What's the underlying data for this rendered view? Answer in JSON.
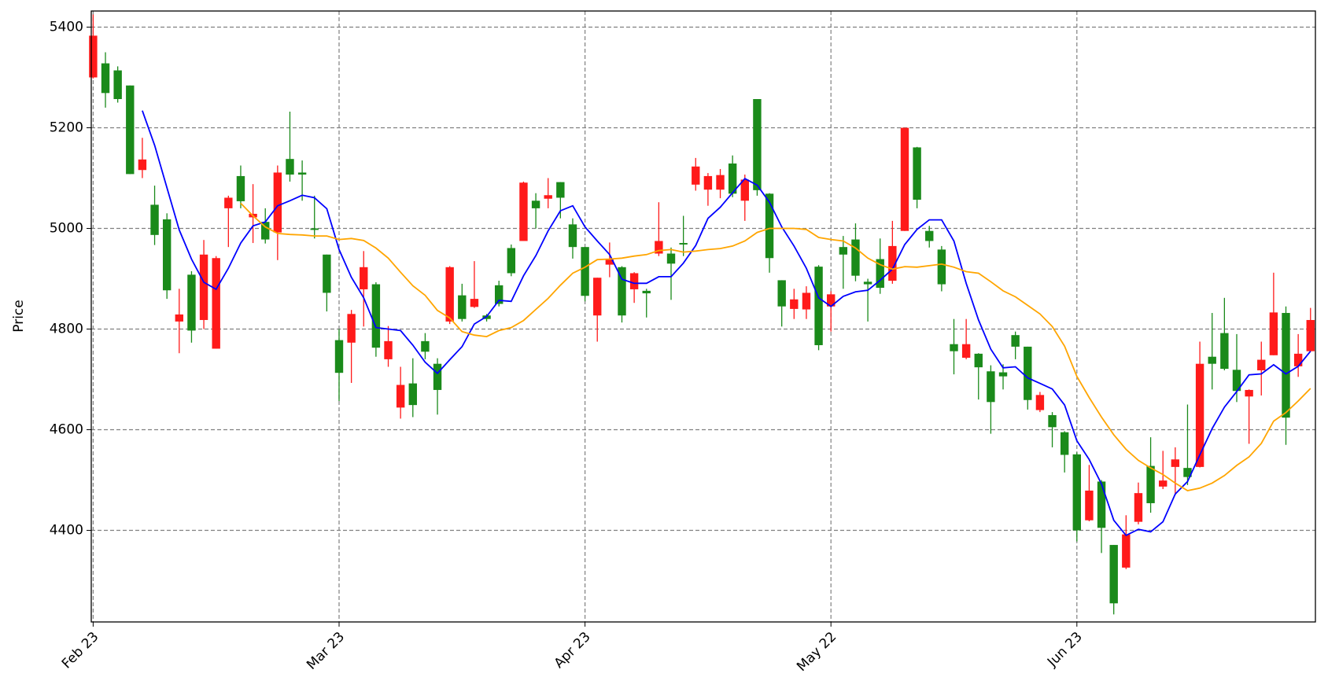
{
  "chart_data": {
    "type": "candlestick",
    "y_label": "Price",
    "categories": [
      "Feb 23",
      null,
      null,
      null,
      null,
      null,
      null,
      null,
      null,
      null,
      null,
      null,
      null,
      null,
      null,
      null,
      null,
      null,
      null,
      null,
      "Mar 23",
      null,
      null,
      null,
      null,
      null,
      null,
      null,
      null,
      null,
      null,
      null,
      null,
      null,
      null,
      null,
      null,
      null,
      null,
      null,
      "Apr 23",
      null,
      null,
      null,
      null,
      null,
      null,
      null,
      null,
      null,
      null,
      null,
      null,
      null,
      null,
      null,
      null,
      null,
      null,
      null,
      "May 22",
      null,
      null,
      null,
      null,
      null,
      null,
      null,
      null,
      null,
      null,
      null,
      null,
      null,
      null,
      null,
      null,
      null,
      null,
      null,
      "Jun 23",
      null,
      null,
      null,
      null,
      null,
      null,
      null,
      null,
      null,
      null,
      null,
      null,
      null,
      null,
      null,
      null,
      null,
      null,
      null
    ],
    "open": [
      5300,
      5328,
      5314,
      5284,
      5116,
      5047,
      5018,
      4815,
      4908,
      4818,
      4761,
      5040,
      5104,
      5022,
      5013,
      4992,
      5138,
      5111,
      5000,
      4948,
      4778,
      4773,
      4879,
      4889,
      4740,
      4644,
      4692,
      4776,
      4731,
      4815,
      4867,
      4844,
      4827,
      4887,
      4961,
      4975,
      5055,
      5059,
      5092,
      5008,
      4963,
      4827,
      4928,
      4923,
      4879,
      4876,
      4950,
      4950,
      4971,
      5087,
      5077,
      5077,
      5129,
      5055,
      5257,
      5069,
      4897,
      4840,
      4839,
      4924,
      4845,
      4963,
      4978,
      4894,
      4939,
      4896,
      4995,
      5161,
      4995,
      4958,
      4770,
      4743,
      4751,
      4716,
      4714,
      4788,
      4765,
      4639,
      4629,
      4595,
      4551,
      4420,
      4497,
      4371,
      4326,
      4417,
      4528,
      4487,
      4526,
      4524,
      4526,
      4745,
      4792,
      4719,
      4666,
      4718,
      4748,
      4832,
      4726,
      4756
    ],
    "high": [
      5425,
      5350,
      5322,
      5284,
      5180,
      5085,
      5030,
      4880,
      4915,
      4977,
      4945,
      5065,
      5125,
      5088,
      5040,
      5125,
      5232,
      5135,
      5065,
      4948,
      4800,
      4838,
      4955,
      4893,
      4806,
      4725,
      4742,
      4792,
      4742,
      4925,
      4890,
      4935,
      4830,
      4896,
      4968,
      5093,
      5070,
      5100,
      5092,
      5020,
      4963,
      4902,
      4972,
      4925,
      4913,
      4880,
      5052,
      4962,
      5025,
      5140,
      5110,
      5118,
      5145,
      5107,
      5257,
      5070,
      4897,
      4880,
      4885,
      4927,
      4875,
      4985,
      5010,
      4900,
      4980,
      5015,
      5200,
      5162,
      5005,
      4965,
      4820,
      4820,
      4752,
      4728,
      4730,
      4795,
      4765,
      4675,
      4635,
      4597,
      4555,
      4530,
      4500,
      4371,
      4430,
      4495,
      4585,
      4558,
      4565,
      4650,
      4775,
      4832,
      4862,
      4790,
      4680,
      4775,
      4912,
      4845,
      4790,
      4842
    ],
    "low": [
      5298,
      5240,
      5250,
      5108,
      5100,
      4967,
      4860,
      4752,
      4773,
      4800,
      4761,
      4963,
      5040,
      4971,
      4970,
      4937,
      5093,
      5055,
      4980,
      4835,
      4657,
      4693,
      4805,
      4745,
      4725,
      4622,
      4625,
      4740,
      4630,
      4810,
      4815,
      4842,
      4815,
      4845,
      4905,
      4975,
      5000,
      5040,
      5020,
      4940,
      4855,
      4775,
      4903,
      4813,
      4852,
      4823,
      4945,
      4858,
      4945,
      5075,
      5045,
      5060,
      5062,
      5015,
      5065,
      4912,
      4805,
      4820,
      4820,
      4758,
      4795,
      4880,
      4895,
      4815,
      4870,
      4890,
      4995,
      5040,
      4962,
      4875,
      4710,
      4740,
      4660,
      4592,
      4680,
      4740,
      4640,
      4635,
      4565,
      4515,
      4378,
      4418,
      4355,
      4233,
      4323,
      4412,
      4435,
      4482,
      4470,
      4490,
      4525,
      4680,
      4718,
      4655,
      4572,
      4668,
      4748,
      4570,
      4705,
      4755
    ],
    "close": [
      5383,
      5269,
      5257,
      5108,
      5137,
      4987,
      4877,
      4829,
      4797,
      4948,
      4941,
      5061,
      5054,
      5029,
      4978,
      5111,
      5107,
      5107,
      4997,
      4872,
      4713,
      4830,
      4923,
      4763,
      4776,
      4689,
      4649,
      4755,
      4679,
      4923,
      4820,
      4860,
      4820,
      4850,
      4911,
      5091,
      5040,
      5066,
      5061,
      4963,
      4866,
      4902,
      4938,
      4827,
      4911,
      4871,
      4975,
      4930,
      4968,
      5123,
      5104,
      5106,
      5069,
      5097,
      5076,
      4941,
      4845,
      4859,
      4872,
      4768,
      4869,
      4948,
      4906,
      4889,
      4882,
      4965,
      5200,
      5057,
      4975,
      4889,
      4756,
      4770,
      4724,
      4655,
      4706,
      4765,
      4659,
      4669,
      4605,
      4550,
      4400,
      4479,
      4405,
      4255,
      4392,
      4474,
      4454,
      4499,
      4541,
      4506,
      4731,
      4731,
      4721,
      4677,
      4679,
      4739,
      4833,
      4624,
      4751,
      4818
    ],
    "up_color": "#ff1a1a",
    "down_color": "#1a8a1a",
    "lines": [
      {
        "color": "#0000ff",
        "values": [
          null,
          null,
          null,
          null,
          5234,
          5165,
          5081,
          4997,
          4939,
          4893,
          4879,
          4921,
          4971,
          5005,
          5013,
          5045,
          5055,
          5066,
          5061,
          5039,
          4958,
          4903,
          4862,
          4803,
          4800,
          4797,
          4768,
          4734,
          4712,
          4739,
          4765,
          4810,
          4825,
          4857,
          4855,
          4906,
          4946,
          4995,
          5035,
          5045,
          5003,
          4975,
          4948,
          4899,
          4891,
          4891,
          4904,
          4904,
          4931,
          4966,
          5020,
          5042,
          5071,
          5099,
          5086,
          5052,
          5003,
          4965,
          4921,
          4862,
          4845,
          4865,
          4874,
          4877,
          4897,
          4919,
          4968,
          4998,
          5017,
          5017,
          4975,
          4891,
          4818,
          4760,
          4723,
          4725,
          4703,
          4692,
          4681,
          4649,
          4578,
          4541,
          4492,
          4420,
          4390,
          4402,
          4397,
          4417,
          4472,
          4497,
          4550,
          4602,
          4645,
          4676,
          4709,
          4711,
          4729,
          4711,
          4726,
          4756
        ]
      },
      {
        "color": "#ffa500",
        "values": [
          null,
          null,
          null,
          null,
          null,
          null,
          null,
          null,
          null,
          null,
          null,
          null,
          5050,
          5025,
          5003,
          4990,
          4988,
          4987,
          4985,
          4985,
          4978,
          4980,
          4976,
          4961,
          4941,
          4913,
          4886,
          4867,
          4837,
          4822,
          4795,
          4788,
          4785,
          4797,
          4803,
          4817,
          4839,
          4861,
          4887,
          4911,
          4923,
          4938,
          4939,
          4941,
          4945,
          4948,
          4956,
          4958,
          4953,
          4955,
          4958,
          4960,
          4965,
          4975,
          4992,
          5000,
          5000,
          5000,
          4998,
          4982,
          4978,
          4975,
          4961,
          4941,
          4928,
          4919,
          4924,
          4923,
          4926,
          4929,
          4923,
          4914,
          4911,
          4894,
          4876,
          4864,
          4847,
          4830,
          4805,
          4766,
          4706,
          4664,
          4625,
          4590,
          4561,
          4539,
          4524,
          4511,
          4494,
          4479,
          4484,
          4494,
          4509,
          4529,
          4546,
          4573,
          4617,
          4634,
          4657,
          4682
        ]
      }
    ],
    "ylim": [
      4218,
      5432
    ],
    "yticks": [
      4400,
      4600,
      4800,
      5000,
      5200,
      5400
    ],
    "grid": true
  }
}
